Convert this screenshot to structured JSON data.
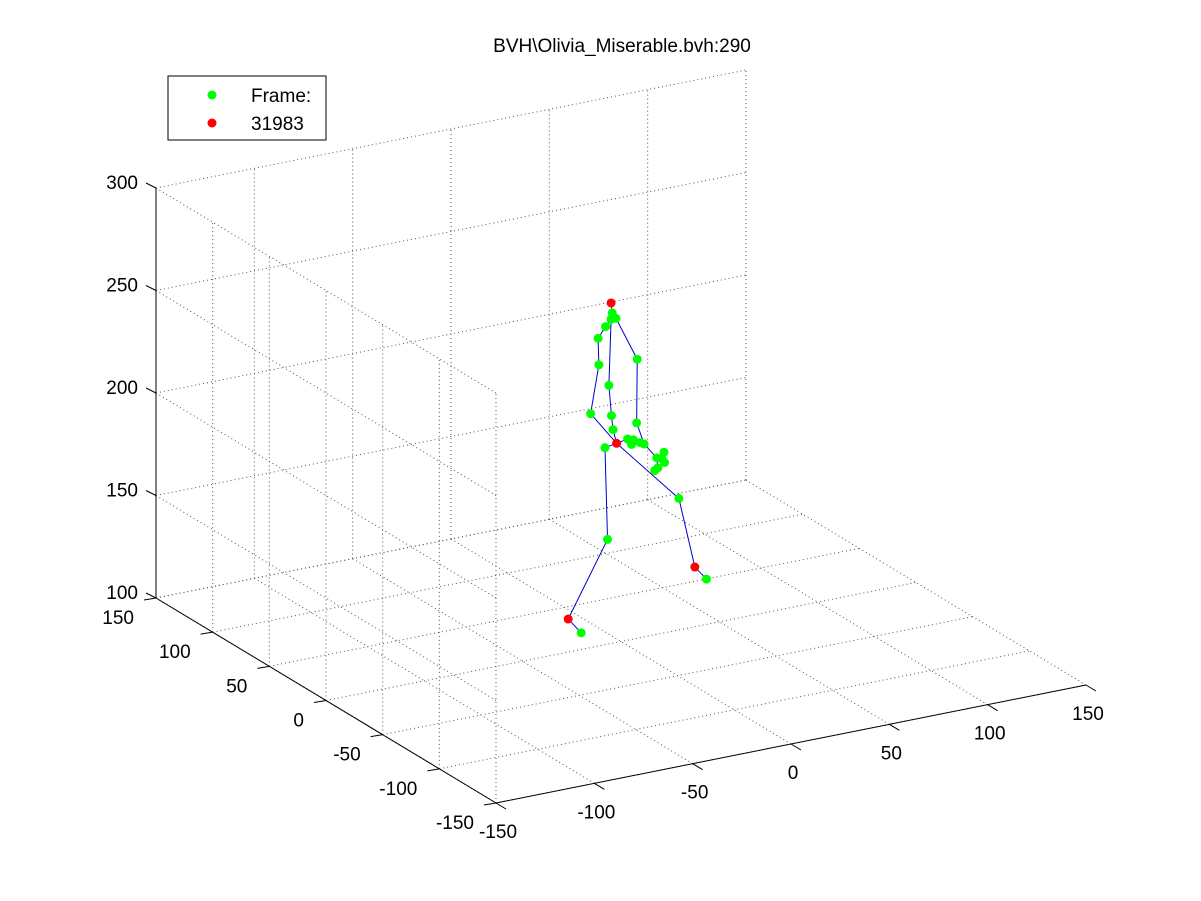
{
  "chart_data": {
    "type": "scatter3d",
    "title": "BVH\\Olivia_Miserable.bvh:290",
    "xlabel": "",
    "ylabel": "",
    "zlabel": "",
    "xlim": [
      -150,
      150
    ],
    "ylim": [
      -150,
      150
    ],
    "zlim": [
      100,
      300
    ],
    "x_ticks": [
      -150,
      -100,
      -50,
      0,
      50,
      100,
      150
    ],
    "y_ticks": [
      -150,
      -100,
      -50,
      0,
      50,
      100,
      150
    ],
    "z_ticks": [
      100,
      150,
      200,
      250,
      300
    ],
    "grid": true,
    "legend": {
      "placement": "top-left",
      "entries": [
        {
          "label": "Frame:",
          "color": "#00ff00"
        },
        {
          "label": "31983",
          "color": "#ff0000"
        }
      ]
    },
    "colors": {
      "joint": "#00ff00",
      "end_effector": "#ff0000",
      "bone": "#0000cc",
      "grid": "#555555"
    },
    "skeleton": {
      "points": [
        {
          "id": "head_end",
          "xyz": [
            -6.2,
            -2,
            267
          ],
          "color": "red"
        },
        {
          "id": "head",
          "xyz": [
            -5.6,
            -2,
            262
          ],
          "color": "green"
        },
        {
          "id": "neck_a",
          "xyz": [
            -6.2,
            -2,
            259
          ],
          "color": "green"
        },
        {
          "id": "neck_b",
          "xyz": [
            -3.7,
            -2,
            259
          ],
          "color": "green"
        },
        {
          "id": "neck_c",
          "xyz": [
            -9,
            -2,
            256
          ],
          "color": "green"
        },
        {
          "id": "l_shoulder",
          "xyz": [
            -12.8,
            -2,
            251
          ],
          "color": "green"
        },
        {
          "id": "l_elbow",
          "xyz": [
            -12.4,
            -2,
            238
          ],
          "color": "green"
        },
        {
          "id": "l_wrist",
          "xyz": [
            -16.6,
            -2,
            215
          ],
          "color": "green"
        },
        {
          "id": "r_shoulder",
          "xyz": [
            7.1,
            -2,
            237
          ],
          "color": "green"
        },
        {
          "id": "r_elbow",
          "xyz": [
            6.8,
            -2,
            206
          ],
          "color": "green"
        },
        {
          "id": "spine3",
          "xyz": [
            -7.3,
            -2,
            227
          ],
          "color": "green"
        },
        {
          "id": "spine2",
          "xyz": [
            -6,
            -2,
            212
          ],
          "color": "green"
        },
        {
          "id": "spine1",
          "xyz": [
            -5.2,
            -2,
            205
          ],
          "color": "green"
        },
        {
          "id": "hips",
          "xyz": [
            -3.4,
            -2,
            198
          ],
          "color": "red"
        },
        {
          "id": "l_hip",
          "xyz": [
            -9.3,
            -2,
            197
          ],
          "color": "green"
        },
        {
          "id": "l_knee",
          "xyz": [
            -8,
            -2,
            152
          ],
          "color": "green"
        },
        {
          "id": "l_ankle",
          "xyz": [
            -28,
            -2,
            117
          ],
          "color": "red"
        },
        {
          "id": "l_toe",
          "xyz": [
            -21.4,
            -2,
            109
          ],
          "color": "green"
        },
        {
          "id": "r_knee",
          "xyz": [
            28.3,
            -2,
            165
          ],
          "color": "green"
        },
        {
          "id": "r_ankle",
          "xyz": [
            36.4,
            -2,
            130
          ],
          "color": "red"
        },
        {
          "id": "r_toe",
          "xyz": [
            42.3,
            -2,
            123
          ],
          "color": "green"
        },
        {
          "id": "hand_1",
          "xyz": [
            2.2,
            -2,
            199
          ],
          "color": "green"
        },
        {
          "id": "hand_2",
          "xyz": [
            5.2,
            -2,
            198
          ],
          "color": "green"
        },
        {
          "id": "hand_3",
          "xyz": [
            8.6,
            -2,
            196
          ],
          "color": "green"
        },
        {
          "id": "hand_4",
          "xyz": [
            10.6,
            -2,
            195
          ],
          "color": "green"
        },
        {
          "id": "hand_5",
          "xyz": [
            4.2,
            -2,
            196
          ],
          "color": "green"
        },
        {
          "id": "hand_6",
          "xyz": [
            17,
            -2,
            187
          ],
          "color": "green"
        },
        {
          "id": "hand_7",
          "xyz": [
            20.7,
            -2,
            189
          ],
          "color": "green"
        },
        {
          "id": "hand_8",
          "xyz": [
            19.6,
            -2,
            186
          ],
          "color": "green"
        },
        {
          "id": "hand_9",
          "xyz": [
            17.6,
            -2,
            182
          ],
          "color": "green"
        },
        {
          "id": "hand_10",
          "xyz": [
            21,
            -2,
            184
          ],
          "color": "green"
        },
        {
          "id": "hand_11",
          "xyz": [
            16,
            -2,
            181
          ],
          "color": "green"
        }
      ],
      "bones": [
        [
          "head_end",
          "head"
        ],
        [
          "head",
          "neck_a"
        ],
        [
          "neck_a",
          "neck_b"
        ],
        [
          "neck_a",
          "neck_c"
        ],
        [
          "neck_c",
          "l_shoulder"
        ],
        [
          "l_shoulder",
          "l_elbow"
        ],
        [
          "l_elbow",
          "l_wrist"
        ],
        [
          "l_wrist",
          "hips"
        ],
        [
          "neck_b",
          "r_shoulder"
        ],
        [
          "r_shoulder",
          "r_elbow"
        ],
        [
          "r_elbow",
          "hand_4"
        ],
        [
          "neck_a",
          "spine3"
        ],
        [
          "spine3",
          "spine2"
        ],
        [
          "spine2",
          "spine1"
        ],
        [
          "spine1",
          "hips"
        ],
        [
          "hips",
          "l_hip"
        ],
        [
          "l_hip",
          "l_knee"
        ],
        [
          "l_knee",
          "l_ankle"
        ],
        [
          "l_ankle",
          "l_toe"
        ],
        [
          "hips",
          "r_knee"
        ],
        [
          "r_knee",
          "r_ankle"
        ],
        [
          "r_ankle",
          "r_toe"
        ],
        [
          "hips",
          "hand_1"
        ],
        [
          "hand_1",
          "hand_2"
        ],
        [
          "hand_2",
          "hand_3"
        ],
        [
          "hand_3",
          "hand_4"
        ],
        [
          "hand_4",
          "hand_6"
        ],
        [
          "hand_6",
          "hand_7"
        ],
        [
          "hand_6",
          "hand_9"
        ],
        [
          "hand_9",
          "hand_11"
        ],
        [
          "hand_7",
          "hand_10"
        ]
      ]
    }
  }
}
